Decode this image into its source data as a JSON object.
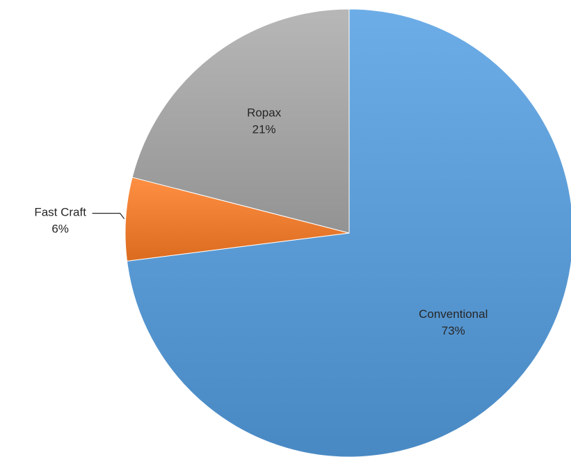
{
  "chart_data": {
    "type": "pie",
    "title": "",
    "start_angle_deg": 0,
    "direction": "clockwise",
    "slices": [
      {
        "name": "Conventional",
        "value": 73,
        "percent_label": "73%",
        "color": "#5b9bd5"
      },
      {
        "name": "Fast Craft",
        "value": 6,
        "percent_label": "6%",
        "color": "#ed7d31"
      },
      {
        "name": "Ropax",
        "value": 21,
        "percent_label": "21%",
        "color": "#a5a5a5"
      }
    ],
    "legend": "none",
    "data_labels": "category name and percentage"
  }
}
